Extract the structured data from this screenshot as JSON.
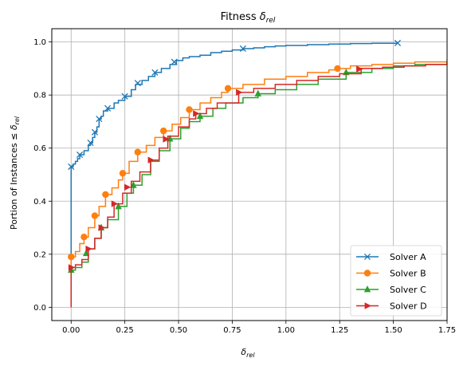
{
  "chart_data": {
    "type": "line",
    "title_base": "Fitness ",
    "title_delta": "δ",
    "title_sub": "rel",
    "xlabel_delta": "δ",
    "xlabel_sub": "rel",
    "ylabel_base": "Portion of Instances ≤ ",
    "ylabel_delta": "δ",
    "ylabel_sub": "rel",
    "xlim": [
      -0.09,
      1.75
    ],
    "ylim": [
      -0.05,
      1.05
    ],
    "xticks": [
      0.0,
      0.25,
      0.5,
      0.75,
      1.0,
      1.25,
      1.5,
      1.75
    ],
    "xtick_labels": [
      "0.00",
      "0.25",
      "0.50",
      "0.75",
      "1.00",
      "1.25",
      "1.50",
      "1.75"
    ],
    "yticks": [
      0.0,
      0.2,
      0.4,
      0.6,
      0.8,
      1.0
    ],
    "ytick_labels": [
      "0.0",
      "0.2",
      "0.4",
      "0.6",
      "0.8",
      "1.0"
    ],
    "grid": true,
    "legend_position": "bottom-right",
    "series": [
      {
        "name": "Solver A",
        "color": "#1f77b4",
        "marker": "x",
        "x": [
          0.0,
          0.0,
          0.01,
          0.02,
          0.03,
          0.04,
          0.06,
          0.08,
          0.09,
          0.1,
          0.11,
          0.12,
          0.13,
          0.14,
          0.15,
          0.17,
          0.2,
          0.22,
          0.25,
          0.28,
          0.3,
          0.33,
          0.36,
          0.39,
          0.42,
          0.46,
          0.49,
          0.52,
          0.55,
          0.6,
          0.65,
          0.7,
          0.75,
          0.8,
          0.85,
          0.9,
          0.95,
          1.0,
          1.1,
          1.2,
          1.3,
          1.4,
          1.52
        ],
        "y": [
          0.0,
          0.53,
          0.54,
          0.55,
          0.56,
          0.575,
          0.59,
          0.61,
          0.62,
          0.64,
          0.66,
          0.68,
          0.71,
          0.72,
          0.74,
          0.75,
          0.77,
          0.78,
          0.795,
          0.82,
          0.84,
          0.855,
          0.87,
          0.885,
          0.9,
          0.915,
          0.93,
          0.94,
          0.945,
          0.95,
          0.96,
          0.965,
          0.97,
          0.975,
          0.978,
          0.982,
          0.985,
          0.987,
          0.99,
          0.992,
          0.994,
          0.995,
          0.996
        ],
        "markers_x": [
          0.0,
          0.04,
          0.09,
          0.11,
          0.13,
          0.17,
          0.25,
          0.31,
          0.39,
          0.48,
          0.8,
          1.52
        ]
      },
      {
        "name": "Solver B",
        "color": "#ff7f0e",
        "marker": "o",
        "x": [
          0.0,
          0.0,
          0.02,
          0.04,
          0.06,
          0.08,
          0.11,
          0.13,
          0.16,
          0.19,
          0.22,
          0.24,
          0.27,
          0.31,
          0.35,
          0.39,
          0.43,
          0.47,
          0.51,
          0.55,
          0.6,
          0.65,
          0.7,
          0.73,
          0.8,
          0.9,
          1.0,
          1.1,
          1.2,
          1.24,
          1.3,
          1.4,
          1.5,
          1.6,
          1.75
        ],
        "y": [
          0.0,
          0.19,
          0.21,
          0.24,
          0.265,
          0.3,
          0.345,
          0.38,
          0.425,
          0.45,
          0.48,
          0.505,
          0.55,
          0.585,
          0.61,
          0.64,
          0.665,
          0.69,
          0.715,
          0.745,
          0.77,
          0.79,
          0.81,
          0.825,
          0.84,
          0.86,
          0.87,
          0.885,
          0.895,
          0.9,
          0.91,
          0.915,
          0.92,
          0.925,
          0.935
        ],
        "markers_x": [
          0.0,
          0.06,
          0.11,
          0.16,
          0.24,
          0.31,
          0.43,
          0.55,
          0.73,
          1.24
        ]
      },
      {
        "name": "Solver C",
        "color": "#2ca02c",
        "marker": "^",
        "x": [
          0.0,
          0.0,
          0.02,
          0.05,
          0.08,
          0.11,
          0.14,
          0.17,
          0.22,
          0.26,
          0.29,
          0.33,
          0.37,
          0.41,
          0.46,
          0.51,
          0.55,
          0.6,
          0.66,
          0.72,
          0.8,
          0.87,
          0.95,
          1.05,
          1.15,
          1.28,
          1.4,
          1.5,
          1.6,
          1.75
        ],
        "y": [
          0.0,
          0.14,
          0.15,
          0.17,
          0.22,
          0.26,
          0.3,
          0.33,
          0.38,
          0.43,
          0.46,
          0.5,
          0.55,
          0.59,
          0.635,
          0.675,
          0.7,
          0.72,
          0.75,
          0.77,
          0.79,
          0.805,
          0.82,
          0.84,
          0.86,
          0.885,
          0.9,
          0.91,
          0.915,
          0.925
        ],
        "markers_x": [
          0.0,
          0.07,
          0.14,
          0.22,
          0.29,
          0.46,
          0.6,
          0.87,
          1.28
        ]
      },
      {
        "name": "Solver D",
        "color": "#d62728",
        "marker": ">",
        "x": [
          0.0,
          0.0,
          0.02,
          0.05,
          0.08,
          0.11,
          0.14,
          0.17,
          0.2,
          0.24,
          0.28,
          0.32,
          0.37,
          0.41,
          0.45,
          0.5,
          0.55,
          0.58,
          0.63,
          0.68,
          0.78,
          0.85,
          0.95,
          1.05,
          1.15,
          1.25,
          1.35,
          1.45,
          1.55,
          1.65,
          1.75
        ],
        "y": [
          0.0,
          0.15,
          0.16,
          0.18,
          0.22,
          0.26,
          0.3,
          0.34,
          0.39,
          0.43,
          0.475,
          0.51,
          0.555,
          0.6,
          0.645,
          0.68,
          0.71,
          0.73,
          0.75,
          0.77,
          0.81,
          0.825,
          0.84,
          0.855,
          0.87,
          0.88,
          0.9,
          0.905,
          0.91,
          0.915,
          0.925
        ],
        "markers_x": [
          0.0,
          0.08,
          0.14,
          0.2,
          0.26,
          0.37,
          0.44,
          0.58,
          0.78,
          1.34
        ]
      }
    ]
  }
}
